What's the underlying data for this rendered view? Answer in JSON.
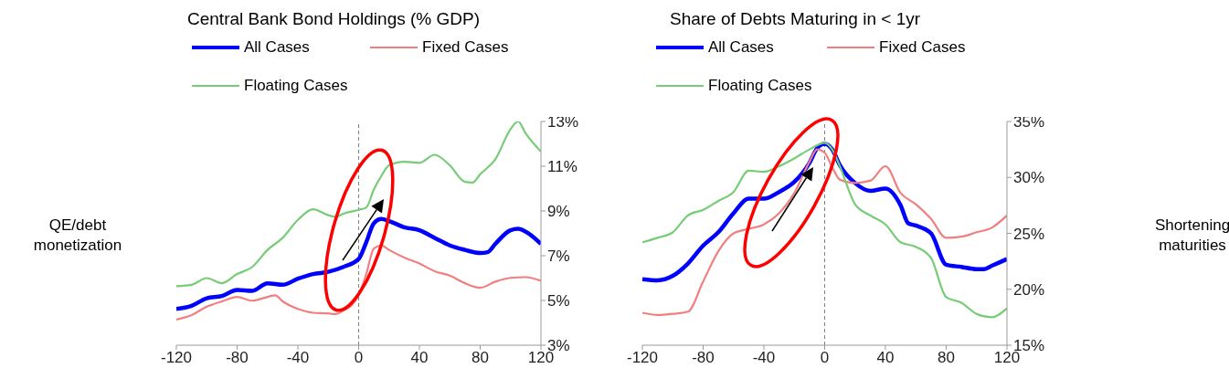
{
  "chart_data": [
    {
      "type": "line",
      "title": "Central Bank Bond Holdings (% GDP)",
      "legend": "top",
      "annotations": [
        "QE/debt monetization"
      ],
      "xlim": [
        -120,
        120
      ],
      "xticks": [
        -120,
        -80,
        -40,
        0,
        40,
        80,
        120
      ],
      "ylim": [
        3,
        13
      ],
      "yticks": [
        {
          "value": 3,
          "label": "3%"
        },
        {
          "value": 5,
          "label": "5%"
        },
        {
          "value": 7,
          "label": "7%"
        },
        {
          "value": 9,
          "label": "9%"
        },
        {
          "value": 11,
          "label": "11%"
        },
        {
          "value": 13,
          "label": "13%"
        }
      ],
      "ref_lines": [
        {
          "axis": "x",
          "value": 0,
          "color": "#808080",
          "line_style": "dashed"
        }
      ],
      "series": [
        {
          "name": "All Cases",
          "color": "#0000ff",
          "x": [
            -120,
            -110,
            -100,
            -90,
            -80,
            -70,
            -60,
            -50,
            -40,
            -30,
            -20,
            -10,
            0,
            5,
            10,
            15,
            20,
            30,
            40,
            50,
            60,
            70,
            80,
            85,
            90,
            100,
            105,
            110,
            120
          ],
          "values": [
            4.62,
            4.76,
            5.1,
            5.2,
            5.47,
            5.43,
            5.77,
            5.7,
            5.97,
            6.18,
            6.28,
            6.5,
            6.85,
            7.6,
            8.45,
            8.64,
            8.55,
            8.27,
            8.14,
            7.8,
            7.46,
            7.26,
            7.12,
            7.16,
            7.53,
            8.14,
            8.2,
            8.07,
            7.53
          ]
        },
        {
          "name": "Fixed Cases",
          "color": "#f08080",
          "x": [
            -120,
            -110,
            -100,
            -90,
            -80,
            -70,
            -60,
            -55,
            -50,
            -40,
            -30,
            -20,
            -15,
            -10,
            -5,
            0,
            5,
            10,
            15,
            20,
            30,
            40,
            50,
            60,
            70,
            80,
            90,
            100,
            110,
            120
          ],
          "values": [
            4.15,
            4.35,
            4.72,
            4.96,
            5.16,
            4.99,
            5.16,
            5.23,
            4.96,
            4.62,
            4.45,
            4.42,
            4.39,
            4.55,
            4.76,
            5.23,
            6.18,
            7.32,
            7.46,
            7.26,
            6.92,
            6.65,
            6.31,
            6.11,
            5.77,
            5.57,
            5.84,
            6.01,
            6.04,
            5.88
          ]
        },
        {
          "name": "Floating Cases",
          "color": "#77cc77",
          "x": [
            -120,
            -110,
            -100,
            -90,
            -80,
            -70,
            -60,
            -50,
            -40,
            -30,
            -20,
            -15,
            -10,
            0,
            5,
            10,
            15,
            20,
            30,
            40,
            50,
            60,
            70,
            75,
            80,
            90,
            100,
            105,
            110,
            120
          ],
          "values": [
            5.64,
            5.7,
            6.0,
            5.77,
            6.18,
            6.5,
            7.26,
            7.8,
            8.6,
            9.08,
            8.81,
            8.74,
            8.88,
            9.05,
            9.15,
            9.96,
            10.57,
            11.04,
            11.2,
            11.15,
            11.51,
            11.04,
            10.3,
            10.27,
            10.64,
            11.31,
            12.66,
            13.0,
            12.46,
            11.65
          ]
        }
      ]
    },
    {
      "type": "line",
      "title": "Share of Debts Maturing in < 1yr",
      "legend": "top",
      "annotations": [
        "Shortening maturities"
      ],
      "xlim": [
        -120,
        120
      ],
      "xticks": [
        -120,
        -80,
        -40,
        0,
        40,
        80,
        120
      ],
      "ylim": [
        15,
        35
      ],
      "yticks": [
        {
          "value": 15,
          "label": "15%"
        },
        {
          "value": 20,
          "label": "20%"
        },
        {
          "value": 25,
          "label": "25%"
        },
        {
          "value": 30,
          "label": "30%"
        },
        {
          "value": 35,
          "label": "35%"
        }
      ],
      "ref_lines": [
        {
          "axis": "x",
          "value": 0,
          "color": "#808080",
          "line_style": "dashed"
        }
      ],
      "series": [
        {
          "name": "All Cases",
          "color": "#0000ff",
          "x": [
            -120,
            -110,
            -100,
            -90,
            -80,
            -70,
            -60,
            -50,
            -40,
            -30,
            -20,
            -10,
            -5,
            0,
            5,
            10,
            20,
            30,
            40,
            50,
            55,
            60,
            70,
            80,
            90,
            100,
            105,
            110,
            120
          ],
          "values": [
            20.9,
            20.8,
            21.2,
            22.3,
            23.9,
            25.1,
            26.8,
            28.1,
            28.1,
            28.7,
            29.6,
            31.3,
            32.6,
            33.0,
            32.5,
            31.1,
            29.5,
            28.8,
            29.0,
            27.5,
            25.9,
            25.7,
            25.0,
            22.2,
            22.0,
            21.8,
            21.8,
            22.1,
            22.7
          ]
        },
        {
          "name": "Fixed Cases",
          "color": "#f08080",
          "x": [
            -120,
            -110,
            -100,
            -90,
            -80,
            -70,
            -60,
            -50,
            -40,
            -30,
            -20,
            -10,
            -5,
            0,
            5,
            10,
            20,
            30,
            40,
            50,
            60,
            70,
            80,
            90,
            100,
            110,
            120
          ],
          "values": [
            17.9,
            17.7,
            17.8,
            18.0,
            20.7,
            23.4,
            25.0,
            25.4,
            25.8,
            26.8,
            28.6,
            31.4,
            32.5,
            32.2,
            30.9,
            29.8,
            29.5,
            29.7,
            31.0,
            28.6,
            27.6,
            26.3,
            24.6,
            24.7,
            25.1,
            25.5,
            26.6
          ]
        },
        {
          "name": "Floating Cases",
          "color": "#77cc77",
          "x": [
            -120,
            -110,
            -100,
            -90,
            -80,
            -70,
            -60,
            -50,
            -40,
            -30,
            -20,
            -10,
            0,
            5,
            10,
            20,
            30,
            40,
            50,
            60,
            70,
            80,
            90,
            100,
            110,
            120
          ],
          "values": [
            24.2,
            24.6,
            25.1,
            26.6,
            27.1,
            27.9,
            28.7,
            30.6,
            30.5,
            31.0,
            31.7,
            32.5,
            33.1,
            32.5,
            31.0,
            27.6,
            26.6,
            25.8,
            24.2,
            23.8,
            22.8,
            19.3,
            18.8,
            17.8,
            17.5,
            18.3
          ]
        }
      ]
    }
  ]
}
